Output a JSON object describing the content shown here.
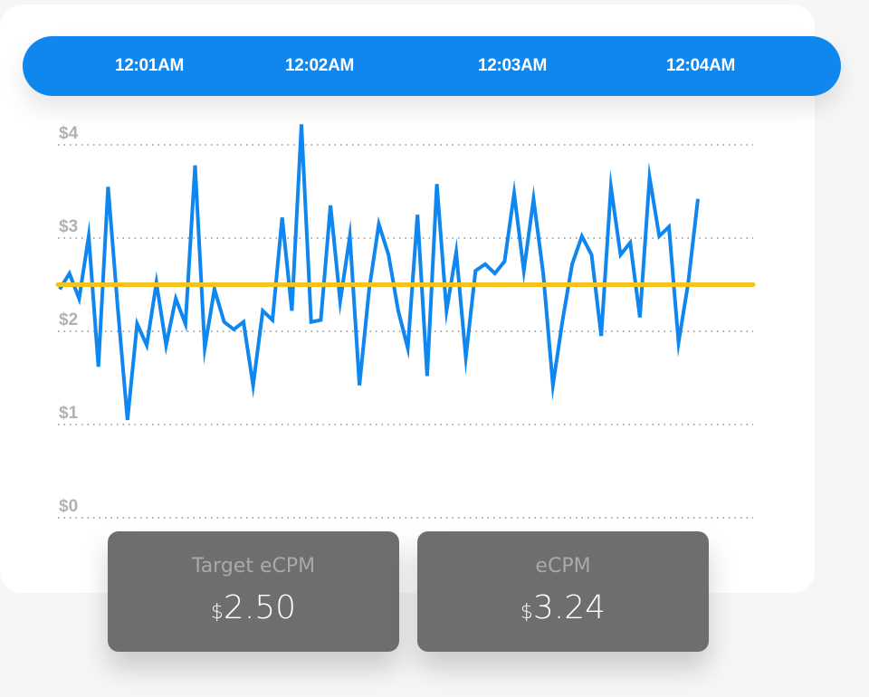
{
  "timeline": {
    "labels": [
      "12:01AM",
      "12:02AM",
      "12:03AM",
      "12:04AM"
    ]
  },
  "stats": {
    "target": {
      "label": "Target eCPM",
      "currency": "$",
      "value": "2.50"
    },
    "ecpm": {
      "label": "eCPM",
      "currency": "$",
      "value": "3.24"
    }
  },
  "colors": {
    "accent_blue": "#0f87ef",
    "target_line": "#f6c21c",
    "card_gray": "#6e6e6e",
    "tick_gray": "#b1b1b1"
  },
  "chart_data": {
    "type": "line",
    "ylim": [
      0,
      4
    ],
    "yticks": [
      {
        "value": 0,
        "label": "$0"
      },
      {
        "value": 1,
        "label": "$1"
      },
      {
        "value": 2,
        "label": "$2"
      },
      {
        "value": 3,
        "label": "$3"
      },
      {
        "value": 4,
        "label": "$4"
      }
    ],
    "grid": true,
    "target": 2.5,
    "series": [
      {
        "color": "#0f87ef",
        "values": [
          2.45,
          2.62,
          2.35,
          3.02,
          1.62,
          3.55,
          2.25,
          1.05,
          2.08,
          1.85,
          2.52,
          1.85,
          2.35,
          2.08,
          3.78,
          1.82,
          2.45,
          2.1,
          2.02,
          2.1,
          1.42,
          2.22,
          2.12,
          3.22,
          2.22,
          4.22,
          2.1,
          2.12,
          3.35,
          2.32,
          3.02,
          1.42,
          2.45,
          3.15,
          2.82,
          2.22,
          1.82,
          3.25,
          1.52,
          3.58,
          2.22,
          2.85,
          1.72,
          2.65,
          2.72,
          2.62,
          2.75,
          3.48,
          2.65,
          3.42,
          2.62,
          1.42,
          2.12,
          2.72,
          3.02,
          2.82,
          1.95,
          3.55,
          2.82,
          2.95,
          2.15,
          3.65,
          3.02,
          3.12,
          1.88,
          2.52,
          3.42
        ]
      }
    ]
  }
}
